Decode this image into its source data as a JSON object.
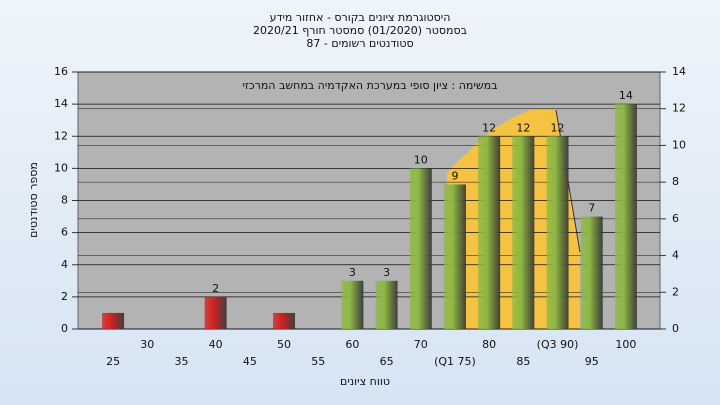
{
  "chart_data": {
    "type": "bar",
    "title": [
      "היסטוגרמת ציונים בקורס - אחזור מידע",
      "בסמסטר  (01/2020)  סמסטר חורף  2020/21",
      "סטודנטים רשומים - 87"
    ],
    "annotation": "במשימה : ציון סופי במערכת האקדמיה במחשב המרכזי",
    "xlabel": "טווח ציונים",
    "ylabel": "מספר סטודנטים",
    "categories": [
      "25",
      "30",
      "35",
      "40",
      "45",
      "50",
      "55",
      "60",
      "65",
      "70",
      "(Q1 75)",
      "80",
      "85",
      "(Q3 90)",
      "95",
      "100"
    ],
    "values": [
      1,
      0,
      0,
      2,
      0,
      1,
      0,
      3,
      3,
      10,
      9,
      12,
      12,
      12,
      7,
      14
    ],
    "value_labels": [
      null,
      null,
      null,
      "2",
      null,
      null,
      null,
      "3",
      "3",
      "10",
      "9",
      "12",
      "12",
      "12",
      "7",
      "14"
    ],
    "colors": [
      "#d42020",
      "#d42020",
      "#d42020",
      "#d42020",
      "#d42020",
      "#d42020",
      "#d42020",
      "#8db843",
      "#8db843",
      "#8db843",
      "#8db843",
      "#8db843",
      "#8db843",
      "#8db843",
      "#8db843",
      "#8db843"
    ],
    "ylim": [
      0,
      16
    ],
    "yticks": [
      0,
      2,
      4,
      6,
      8,
      10,
      12,
      14,
      16
    ],
    "y2lim": [
      0,
      14
    ],
    "y2ticks": [
      0,
      2,
      4,
      6,
      8,
      10,
      12,
      14
    ],
    "grid": true
  }
}
